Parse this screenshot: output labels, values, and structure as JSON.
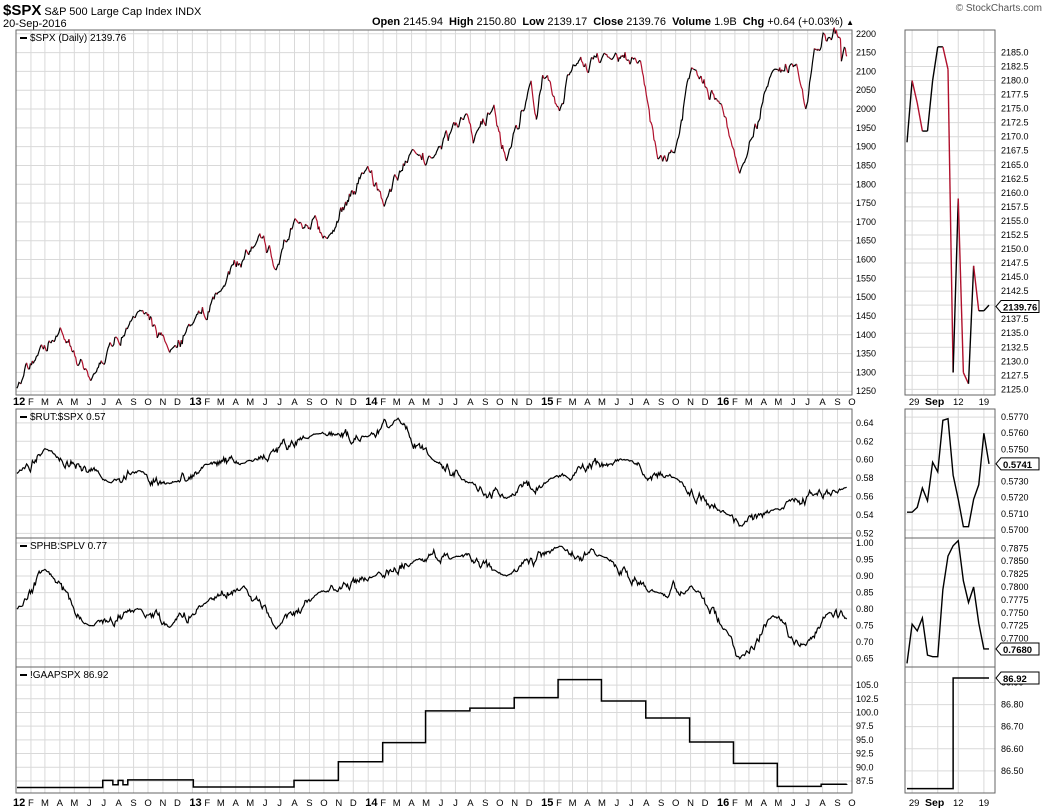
{
  "header": {
    "symbol": "$SPX",
    "name": "S&P 500 Large Cap Index",
    "exchange": "INDX",
    "date": "20-Sep-2016",
    "open_label": "Open",
    "open": "2145.94",
    "high_label": "High",
    "high": "2150.80",
    "low_label": "Low",
    "low": "2139.17",
    "close_label": "Close",
    "close": "2139.76",
    "volume_label": "Volume",
    "volume": "1.9B",
    "chg_label": "Chg",
    "chg": "+0.64 (+0.03%)",
    "credit": "© StockCharts.com"
  },
  "colors": {
    "up": "#000000",
    "down": "#b0102c",
    "grid": "#d9d9d9",
    "border": "#666666"
  },
  "main_axis": {
    "year_starts": [
      2012,
      2013,
      2014,
      2015,
      2016
    ],
    "month_letters": [
      "J",
      "F",
      "M",
      "A",
      "M",
      "J",
      "J",
      "A",
      "S",
      "O",
      "N",
      "D"
    ],
    "tick_labels": [
      "12",
      "F",
      "M",
      "A",
      "M",
      "J",
      "J",
      "A",
      "S",
      "O",
      "N",
      "D",
      "13",
      "F",
      "M",
      "A",
      "M",
      "J",
      "J",
      "A",
      "S",
      "O",
      "N",
      "D",
      "14",
      "F",
      "M",
      "A",
      "M",
      "J",
      "J",
      "A",
      "S",
      "O",
      "N",
      "D",
      "15",
      "F",
      "M",
      "A",
      "M",
      "J",
      "J",
      "A",
      "S",
      "O",
      "N",
      "D",
      "16",
      "F",
      "M",
      "A",
      "M",
      "J",
      "J",
      "A",
      "S",
      "O"
    ]
  },
  "side_axis": {
    "tick_labels": [
      "29",
      "Sep",
      "12",
      "19"
    ]
  },
  "chart_data": [
    {
      "type": "line",
      "panel": "spx",
      "legend": "$SPX (Daily) 2139.76",
      "ylim": [
        1240,
        2210
      ],
      "yticks": [
        1250,
        1300,
        1350,
        1400,
        1450,
        1500,
        1550,
        1600,
        1650,
        1700,
        1750,
        1800,
        1850,
        1900,
        1950,
        2000,
        2050,
        2100,
        2150,
        2200
      ],
      "x": [
        "2012-01-03",
        "2012-02-15",
        "2012-04-02",
        "2012-06-04",
        "2012-09-14",
        "2012-11-15",
        "2012-12-31",
        "2013-03-01",
        "2013-05-21",
        "2013-06-24",
        "2013-08-02",
        "2013-10-08",
        "2013-12-31",
        "2014-02-03",
        "2014-04-02",
        "2014-05-15",
        "2014-07-24",
        "2014-08-07",
        "2014-09-19",
        "2014-10-15",
        "2014-12-05",
        "2014-12-16",
        "2014-12-29",
        "2015-02-02",
        "2015-03-02",
        "2015-05-21",
        "2015-07-20",
        "2015-08-25",
        "2015-09-29",
        "2015-11-03",
        "2016-01-04",
        "2016-02-11",
        "2016-04-20",
        "2016-06-08",
        "2016-06-27",
        "2016-07-15",
        "2016-08-15",
        "2016-09-07",
        "2016-09-09",
        "2016-09-20"
      ],
      "y": [
        1258,
        1345,
        1419,
        1278,
        1465,
        1353,
        1426,
        1516,
        1669,
        1573,
        1709,
        1656,
        1848,
        1741,
        1891,
        1870,
        1988,
        1909,
        2011,
        1862,
        2075,
        1972,
        2090,
        1995,
        2117,
        2131,
        2128,
        1867,
        1884,
        2110,
        2013,
        1829,
        2102,
        2119,
        2000,
        2161,
        2190,
        2186,
        2127,
        2140
      ]
    },
    {
      "type": "line",
      "panel": "side-spx",
      "ylim": [
        2124,
        2189
      ],
      "yticks": [
        "2125.0",
        "2127.5",
        "2130.0",
        "2132.5",
        "2135.0",
        "2137.5",
        "2140.0",
        "2142.5",
        "2145.0",
        "2147.5",
        "2150.0",
        "2152.5",
        "2155.0",
        "2157.5",
        "2160.0",
        "2162.5",
        "2165.0",
        "2167.5",
        "2170.0",
        "2172.5",
        "2175.0",
        "2177.5",
        "2180.0",
        "2182.5",
        "2185.0"
      ],
      "x": [
        "Aug 26",
        "Aug 29",
        "Aug 30",
        "Aug 31",
        "Sep 1",
        "Sep 2",
        "Sep 6",
        "Sep 7",
        "Sep 8",
        "Sep 9",
        "Sep 12",
        "Sep 13",
        "Sep 14",
        "Sep 15",
        "Sep 16",
        "Sep 19",
        "Sep 20"
      ],
      "y": [
        2169,
        2180,
        2176,
        2171,
        2171,
        2180,
        2186,
        2186,
        2182,
        2128,
        2159,
        2128,
        2126,
        2147,
        2139,
        2139,
        2140
      ],
      "last_value": "2139.76"
    },
    {
      "type": "line",
      "panel": "rut",
      "legend": "$RUT:$SPX 0.57",
      "ylim": [
        0.515,
        0.655
      ],
      "yticks": [
        "0.52",
        "0.54",
        "0.56",
        "0.58",
        "0.60",
        "0.62",
        "0.64"
      ],
      "x": [
        "2012-01-03",
        "2012-03-01",
        "2012-07-15",
        "2012-09-14",
        "2012-11-15",
        "2013-01-30",
        "2013-04-15",
        "2013-09-20",
        "2013-12-31",
        "2014-03-04",
        "2014-05-15",
        "2014-08-01",
        "2014-10-15",
        "2015-01-15",
        "2015-06-23",
        "2015-09-30",
        "2016-01-20",
        "2016-02-10",
        "2016-04-20",
        "2016-09-20"
      ],
      "y": [
        0.585,
        0.612,
        0.575,
        0.588,
        0.574,
        0.595,
        0.596,
        0.628,
        0.625,
        0.645,
        0.6,
        0.575,
        0.558,
        0.58,
        0.6,
        0.58,
        0.54,
        0.528,
        0.545,
        0.57
      ],
      "last_value": "0.5741"
    },
    {
      "type": "line",
      "panel": "side-rut",
      "ylim": [
        0.5695,
        0.5775
      ],
      "yticks": [
        "0.5700",
        "0.5710",
        "0.5720",
        "0.5730",
        "0.5740",
        "0.5750",
        "0.5760",
        "0.5770"
      ],
      "x": [
        "Aug 26",
        "Aug 29",
        "Aug 30",
        "Aug 31",
        "Sep 1",
        "Sep 2",
        "Sep 6",
        "Sep 7",
        "Sep 8",
        "Sep 9",
        "Sep 12",
        "Sep 13",
        "Sep 14",
        "Sep 15",
        "Sep 16",
        "Sep 19",
        "Sep 20"
      ],
      "y": [
        0.5711,
        0.5711,
        0.5714,
        0.5726,
        0.5718,
        0.5742,
        0.5736,
        0.5768,
        0.5769,
        0.5734,
        0.5719,
        0.5702,
        0.5702,
        0.5719,
        0.5728,
        0.576,
        0.5741
      ],
      "last_value": "0.5741"
    },
    {
      "type": "line",
      "panel": "sphb",
      "legend": "SPHB:SPLV 0.77",
      "ylim": [
        0.625,
        1.015
      ],
      "yticks": [
        "0.65",
        "0.70",
        "0.75",
        "0.80",
        "0.85",
        "0.90",
        "0.95",
        "1.00"
      ],
      "x": [
        "2012-01-03",
        "2012-03-01",
        "2012-06-01",
        "2012-09-14",
        "2012-11-15",
        "2013-01-30",
        "2013-04-18",
        "2013-06-24",
        "2013-09-20",
        "2014-01-15",
        "2014-04-11",
        "2014-07-03",
        "2014-10-15",
        "2015-02-02",
        "2015-05-01",
        "2015-08-25",
        "2015-11-03",
        "2016-01-20",
        "2016-02-11",
        "2016-04-20",
        "2016-06-27",
        "2016-08-15",
        "2016-09-20"
      ],
      "y": [
        0.8,
        0.92,
        0.75,
        0.8,
        0.745,
        0.82,
        0.87,
        0.74,
        0.85,
        0.9,
        0.95,
        0.96,
        0.9,
        0.99,
        0.96,
        0.85,
        0.87,
        0.72,
        0.65,
        0.78,
        0.69,
        0.79,
        0.77
      ],
      "last_value": "0.7680"
    },
    {
      "type": "line",
      "panel": "side-sphb",
      "ylim": [
        0.7645,
        0.7895
      ],
      "yticks": [
        "0.7700",
        "0.7725",
        "0.7750",
        "0.7775",
        "0.7800",
        "0.7825",
        "0.7850",
        "0.7875"
      ],
      "x": [
        "Aug 26",
        "Aug 29",
        "Aug 30",
        "Aug 31",
        "Sep 1",
        "Sep 2",
        "Sep 6",
        "Sep 7",
        "Sep 8",
        "Sep 9",
        "Sep 12",
        "Sep 13",
        "Sep 14",
        "Sep 15",
        "Sep 16",
        "Sep 19",
        "Sep 20"
      ],
      "y": [
        0.7652,
        0.7728,
        0.7715,
        0.774,
        0.7668,
        0.7665,
        0.7665,
        0.7795,
        0.786,
        0.788,
        0.789,
        0.7812,
        0.777,
        0.78,
        0.773,
        0.768,
        0.768
      ],
      "last_value": "0.7680"
    },
    {
      "type": "step",
      "panel": "gaap",
      "legend": "!GAAPSPX 86.92",
      "ylim": [
        85.3,
        108.3
      ],
      "yticks": [
        "87.5",
        "90.0",
        "92.5",
        "95.0",
        "97.5",
        "100.0",
        "102.5",
        "105.0"
      ],
      "x": [
        "2012-01-03",
        "2012-06-29",
        "2012-07-20",
        "2012-07-31",
        "2012-08-10",
        "2012-08-20",
        "2013-01-03",
        "2013-04-30",
        "2013-07-31",
        "2013-10-31",
        "2014-01-31",
        "2014-04-30",
        "2014-07-31",
        "2014-10-31",
        "2015-01-30",
        "2015-04-30",
        "2015-07-31",
        "2015-10-30",
        "2016-01-29",
        "2016-04-29",
        "2016-07-29",
        "2016-09-20"
      ],
      "y": [
        86.3,
        87.6,
        86.8,
        87.6,
        86.8,
        87.7,
        86.4,
        86.4,
        87.6,
        91.0,
        94.5,
        100.3,
        100.8,
        102.7,
        106.0,
        102.1,
        99.0,
        94.6,
        90.7,
        86.5,
        86.9,
        86.92
      ],
      "last_value": "86.92"
    },
    {
      "type": "step",
      "panel": "side-gaap",
      "ylim": [
        86.4,
        86.97
      ],
      "yticks": [
        "86.50",
        "86.60",
        "86.70",
        "86.80",
        "86.90"
      ],
      "x": [
        "Aug 26",
        "Aug 29",
        "Aug 30",
        "Aug 31",
        "Sep 1",
        "Sep 2",
        "Sep 6",
        "Sep 7",
        "Sep 8",
        "Sep 9",
        "Sep 12",
        "Sep 13",
        "Sep 14",
        "Sep 15",
        "Sep 16",
        "Sep 19",
        "Sep 20"
      ],
      "y": [
        86.42,
        86.42,
        86.42,
        86.42,
        86.42,
        86.42,
        86.42,
        86.42,
        86.42,
        86.92,
        86.92,
        86.92,
        86.92,
        86.92,
        86.92,
        86.92,
        86.92
      ],
      "last_value": "86.92"
    }
  ]
}
